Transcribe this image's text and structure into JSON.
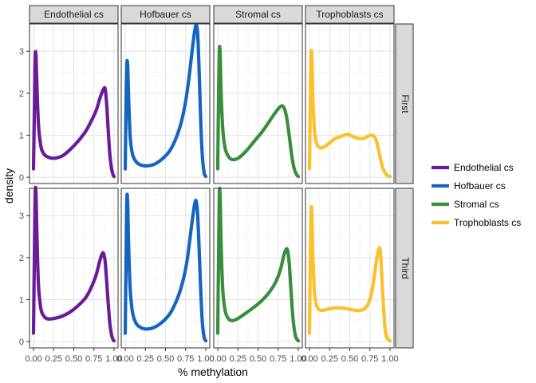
{
  "chart_data": {
    "type": "line",
    "subtype": "faceted density plot",
    "xlabel": "% methylation",
    "ylabel": "density",
    "xlim": [
      -0.05,
      1.05
    ],
    "ylim": [
      -0.15,
      3.65
    ],
    "x_ticks": [
      0,
      0.25,
      0.5,
      0.75,
      1
    ],
    "x_tick_labels": [
      "0.00",
      "0.25",
      "0.50",
      "0.75",
      "1.00"
    ],
    "y_ticks": [
      0,
      1,
      2,
      3
    ],
    "y_tick_labels": [
      "0",
      "1",
      "2",
      "3"
    ],
    "grid": true,
    "legend_position": "right",
    "column_facets": [
      "Endothelial cs",
      "Hofbauer cs",
      "Stromal cs",
      "Trophoblasts cs"
    ],
    "row_facets": [
      "First",
      "Third"
    ],
    "series": [
      {
        "name": "Endothelial cs",
        "color": "#6A1B9A"
      },
      {
        "name": "Hofbauer cs",
        "color": "#1565C0"
      },
      {
        "name": "Stromal cs",
        "color": "#388E3C"
      },
      {
        "name": "Trophoblasts cs",
        "color": "#FBC02D"
      }
    ],
    "panels": [
      {
        "row": "First",
        "col": "Endothelial cs",
        "x": [
          0.0,
          0.01,
          0.02,
          0.03,
          0.04,
          0.06,
          0.09,
          0.13,
          0.18,
          0.25,
          0.35,
          0.45,
          0.55,
          0.65,
          0.72,
          0.78,
          0.82,
          0.85,
          0.87,
          0.89,
          0.91,
          0.93,
          0.95,
          0.97,
          0.99,
          1.0
        ],
        "y": [
          0.2,
          1.6,
          2.85,
          2.9,
          2.3,
          1.3,
          0.75,
          0.55,
          0.48,
          0.45,
          0.5,
          0.65,
          0.85,
          1.1,
          1.35,
          1.6,
          1.85,
          2.02,
          2.1,
          2.1,
          1.7,
          1.05,
          0.5,
          0.2,
          0.05,
          0.02
        ]
      },
      {
        "row": "First",
        "col": "Hofbauer cs",
        "x": [
          0.0,
          0.01,
          0.02,
          0.03,
          0.04,
          0.06,
          0.09,
          0.13,
          0.18,
          0.25,
          0.35,
          0.45,
          0.55,
          0.62,
          0.68,
          0.73,
          0.77,
          0.8,
          0.83,
          0.86,
          0.88,
          0.9,
          0.92,
          0.94,
          0.96,
          0.98,
          1.0
        ],
        "y": [
          0.2,
          1.8,
          2.7,
          2.65,
          2.0,
          1.0,
          0.55,
          0.38,
          0.3,
          0.27,
          0.3,
          0.42,
          0.62,
          0.88,
          1.2,
          1.6,
          2.05,
          2.5,
          3.0,
          3.45,
          3.62,
          3.4,
          2.4,
          1.2,
          0.45,
          0.1,
          0.02
        ]
      },
      {
        "row": "First",
        "col": "Stromal cs",
        "x": [
          0.0,
          0.01,
          0.02,
          0.03,
          0.04,
          0.06,
          0.09,
          0.13,
          0.18,
          0.25,
          0.35,
          0.45,
          0.55,
          0.63,
          0.7,
          0.76,
          0.8,
          0.83,
          0.86,
          0.89,
          0.92,
          0.95,
          0.98,
          1.0
        ],
        "y": [
          0.2,
          2.0,
          3.05,
          2.9,
          2.1,
          1.2,
          0.7,
          0.5,
          0.42,
          0.45,
          0.62,
          0.85,
          1.08,
          1.3,
          1.5,
          1.65,
          1.7,
          1.62,
          1.38,
          0.95,
          0.5,
          0.2,
          0.06,
          0.02
        ]
      },
      {
        "row": "First",
        "col": "Trophoblasts cs",
        "x": [
          0.0,
          0.01,
          0.02,
          0.03,
          0.04,
          0.06,
          0.09,
          0.13,
          0.18,
          0.25,
          0.32,
          0.4,
          0.47,
          0.53,
          0.6,
          0.67,
          0.73,
          0.78,
          0.82,
          0.85,
          0.88,
          0.91,
          0.94,
          0.97,
          1.0
        ],
        "y": [
          0.2,
          1.8,
          2.95,
          2.8,
          2.0,
          1.15,
          0.8,
          0.7,
          0.72,
          0.82,
          0.92,
          0.98,
          1.02,
          0.98,
          0.93,
          0.92,
          0.98,
          1.0,
          0.92,
          0.72,
          0.45,
          0.22,
          0.1,
          0.04,
          0.02
        ]
      },
      {
        "row": "Third",
        "col": "Endothelial cs",
        "x": [
          0.0,
          0.01,
          0.02,
          0.03,
          0.04,
          0.06,
          0.09,
          0.13,
          0.18,
          0.25,
          0.35,
          0.45,
          0.55,
          0.65,
          0.72,
          0.78,
          0.82,
          0.85,
          0.87,
          0.89,
          0.91,
          0.93,
          0.95,
          0.97,
          0.99,
          1.0
        ],
        "y": [
          0.2,
          2.0,
          3.5,
          3.55,
          2.7,
          1.4,
          0.8,
          0.6,
          0.54,
          0.55,
          0.6,
          0.7,
          0.85,
          1.05,
          1.3,
          1.6,
          1.9,
          2.08,
          2.1,
          1.9,
          1.4,
          0.85,
          0.4,
          0.15,
          0.04,
          0.02
        ]
      },
      {
        "row": "Third",
        "col": "Hofbauer cs",
        "x": [
          0.0,
          0.01,
          0.02,
          0.03,
          0.04,
          0.06,
          0.09,
          0.13,
          0.18,
          0.25,
          0.35,
          0.45,
          0.55,
          0.62,
          0.68,
          0.73,
          0.77,
          0.8,
          0.83,
          0.86,
          0.88,
          0.9,
          0.92,
          0.94,
          0.96,
          0.98,
          1.0
        ],
        "y": [
          0.2,
          2.0,
          3.4,
          3.3,
          2.4,
          1.3,
          0.7,
          0.45,
          0.35,
          0.3,
          0.33,
          0.45,
          0.65,
          0.9,
          1.2,
          1.55,
          1.95,
          2.4,
          2.85,
          3.25,
          3.35,
          3.0,
          2.1,
          1.1,
          0.4,
          0.1,
          0.02
        ]
      },
      {
        "row": "Third",
        "col": "Stromal cs",
        "x": [
          0.0,
          0.01,
          0.02,
          0.03,
          0.04,
          0.06,
          0.09,
          0.13,
          0.18,
          0.25,
          0.35,
          0.45,
          0.55,
          0.63,
          0.7,
          0.75,
          0.79,
          0.82,
          0.85,
          0.87,
          0.89,
          0.91,
          0.93,
          0.95,
          0.97,
          1.0
        ],
        "y": [
          0.2,
          2.1,
          3.55,
          3.4,
          2.4,
          1.3,
          0.75,
          0.55,
          0.5,
          0.55,
          0.68,
          0.82,
          0.98,
          1.15,
          1.35,
          1.55,
          1.8,
          2.05,
          2.2,
          2.15,
          1.8,
          1.2,
          0.65,
          0.3,
          0.1,
          0.02
        ]
      },
      {
        "row": "Third",
        "col": "Trophoblasts cs",
        "x": [
          0.0,
          0.01,
          0.02,
          0.03,
          0.04,
          0.06,
          0.09,
          0.13,
          0.18,
          0.25,
          0.32,
          0.4,
          0.47,
          0.55,
          0.62,
          0.68,
          0.73,
          0.77,
          0.8,
          0.83,
          0.86,
          0.88,
          0.9,
          0.92,
          0.94,
          0.96,
          0.98,
          1.0
        ],
        "y": [
          0.2,
          2.0,
          3.15,
          3.0,
          2.2,
          1.2,
          0.85,
          0.75,
          0.75,
          0.78,
          0.8,
          0.8,
          0.78,
          0.75,
          0.74,
          0.78,
          0.9,
          1.15,
          1.5,
          1.9,
          2.2,
          2.15,
          1.5,
          0.8,
          0.3,
          0.1,
          0.04,
          0.02
        ]
      }
    ]
  }
}
